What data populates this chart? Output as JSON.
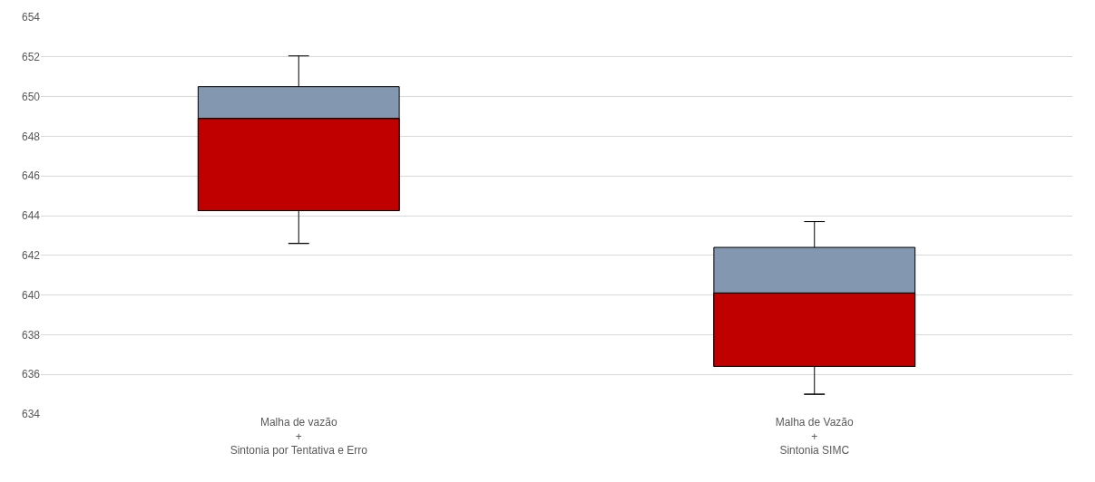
{
  "chart_data": {
    "type": "box",
    "categories": [
      "Malha de vazão\n+\nSintonia por Tentativa e Erro",
      "Malha de Vazão\n+\nSintonia SIMC"
    ],
    "series": [
      {
        "color": "#c00000",
        "boxes": [
          {
            "low": 642.6,
            "q1": 644.25,
            "median": 648.9,
            "q3": 650.5,
            "high": 652.05
          },
          {
            "low": 635,
            "q1": 636.4,
            "median": 640.1,
            "q3": 642.4,
            "high": 643.7
          }
        ]
      },
      {
        "color": "#8497b0",
        "boxes": [
          {
            "low": 642.6,
            "q1": 644.25,
            "median": 648.9,
            "q3": 650.5,
            "high": 652.05
          },
          {
            "low": 635,
            "q1": 636.4,
            "median": 640.1,
            "q3": 642.4,
            "high": 643.7
          }
        ]
      }
    ],
    "ylim": [
      634,
      654
    ],
    "yticks": [
      634,
      636,
      638,
      640,
      642,
      644,
      646,
      648,
      650,
      652,
      654
    ],
    "grid": "y"
  }
}
